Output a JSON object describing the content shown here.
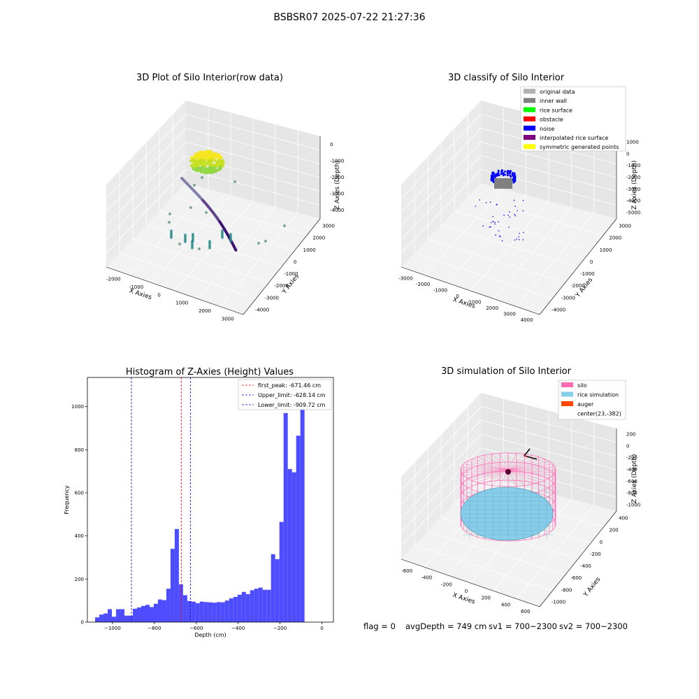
{
  "suptitle": "BSBSR07 2025-07-22 21:27:36",
  "panels": {
    "raw": {
      "title": "3D Plot of Silo Interior(row data)",
      "xlabel": "X Axies",
      "ylabel": "Y Axies",
      "zlabel": "Z Axies (Depth)",
      "xticks": [
        "-2000",
        "-1000",
        "0",
        "1000",
        "2000",
        "3000"
      ],
      "yticks": [
        "3000",
        "2000",
        "1000",
        "0",
        "-1000",
        "-2000",
        "-3000",
        "-4000"
      ],
      "zticks": [
        "0",
        "-1000",
        "-2000",
        "-3000",
        "-4000"
      ]
    },
    "classify": {
      "title": "3D classify of Silo Interior",
      "xlabel": "X Axies",
      "ylabel": "Y Axies",
      "zlabel": "Z Axies (Depth)",
      "xticks": [
        "-3000",
        "-2000",
        "-1000",
        "0",
        "1000",
        "2000",
        "3000",
        "4000"
      ],
      "yticks": [
        "3000",
        "2000",
        "1000",
        "0",
        "-1000",
        "-2000",
        "-3000",
        "-4000"
      ],
      "zticks": [
        "1000",
        "0",
        "-1000",
        "-2000",
        "-3000",
        "-4000",
        "-5000"
      ],
      "legend": [
        {
          "label": "original data",
          "color": "#b3b3b3"
        },
        {
          "label": "inner wall",
          "color": "#808080"
        },
        {
          "label": "rice surface",
          "color": "#00ff00"
        },
        {
          "label": "obstacle",
          "color": "#ff0000"
        },
        {
          "label": "noise",
          "color": "#0000ff"
        },
        {
          "label": "interpolated rice surface",
          "color": "#800080"
        },
        {
          "label": "symmetric generated points",
          "color": "#ffff00"
        }
      ]
    },
    "simulation": {
      "title": "3D simulation of Silo Interior",
      "xlabel": "X Axies",
      "ylabel": "Y Axies",
      "zlabel": "Z Axies (Depth)",
      "xticks": [
        "-600",
        "-400",
        "-200",
        "0",
        "200",
        "400",
        "600"
      ],
      "yticks": [
        "400",
        "200",
        "0",
        "-200",
        "-400",
        "-600",
        "-800",
        "-1000"
      ],
      "zticks": [
        "200",
        "0",
        "-200",
        "-400",
        "-600",
        "-800",
        "-1000"
      ],
      "legend": [
        {
          "label": "silo",
          "color": "#ff69b4"
        },
        {
          "label": "rice simulation",
          "color": "#87ceeb"
        },
        {
          "label": "auger",
          "color": "#ff4500"
        },
        {
          "label": "center(23,-382)",
          "color": ""
        }
      ]
    }
  },
  "chart_data": {
    "type": "bar",
    "title": "Histogram of Z-Axies (Height) Values",
    "xlabel": "Depth (cm)",
    "ylabel": "Frequency",
    "xlim": [
      -1120,
      55
    ],
    "ylim": [
      0,
      1135
    ],
    "xticks": [
      -1000,
      -800,
      -600,
      -400,
      -200,
      0
    ],
    "xtick_labels": [
      "−1000",
      "−800",
      "−600",
      "−400",
      "−200",
      "0"
    ],
    "yticks": [
      0,
      200,
      400,
      600,
      800,
      1000
    ],
    "bar_color": "#4d4dff",
    "bin_start": -1083,
    "bin_width": 20,
    "values": [
      22,
      35,
      40,
      60,
      25,
      60,
      60,
      30,
      30,
      62,
      68,
      75,
      80,
      70,
      85,
      105,
      102,
      155,
      340,
      432,
      175,
      125,
      98,
      95,
      88,
      95,
      93,
      92,
      90,
      93,
      92,
      100,
      110,
      117,
      127,
      140,
      130,
      148,
      155,
      160,
      150,
      150,
      315,
      292,
      465,
      970,
      710,
      695,
      865,
      1060
    ],
    "vlines": [
      {
        "label": "first_peak: -671.46 cm",
        "x": -671.46,
        "color": "#ff0000"
      },
      {
        "label": "Upper_limit: -628.14 cm",
        "x": -628.14,
        "color": "#0000ff"
      },
      {
        "label": "Lower_limit: -909.72 cm",
        "x": -909.72,
        "color": "#0000ff"
      }
    ]
  },
  "info": {
    "flag": "flag = 0",
    "avg_depth": "avgDepth = 749 cm",
    "sv1": "sv1 = 700~2300",
    "sv2": "sv2 = 700~2300"
  }
}
